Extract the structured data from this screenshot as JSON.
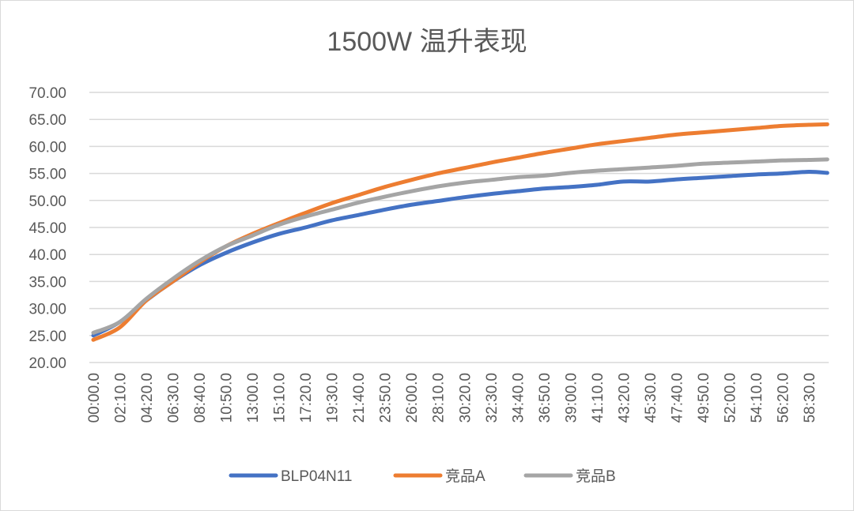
{
  "chart_data": {
    "type": "line",
    "title": "1500W 温升表现",
    "xlabel": "",
    "ylabel": "",
    "ylim": [
      20,
      70
    ],
    "y_ticks": [
      "20.00",
      "25.00",
      "30.00",
      "35.00",
      "40.00",
      "45.00",
      "50.00",
      "55.00",
      "60.00",
      "65.00",
      "70.00"
    ],
    "x_tick_labels": [
      "00:00.0",
      "02:10.0",
      "04:20.0",
      "06:30.0",
      "08:40.0",
      "10:50.0",
      "13:00.0",
      "15:10.0",
      "17:20.0",
      "19:30.0",
      "21:40.0",
      "23:50.0",
      "26:00.0",
      "28:10.0",
      "30:20.0",
      "32:30.0",
      "34:40.0",
      "36:50.0",
      "39:00.0",
      "41:10.0",
      "43:20.0",
      "45:30.0",
      "47:40.0",
      "49:50.0",
      "52:00.0",
      "54:10.0",
      "56:20.0",
      "58:30.0"
    ],
    "x": [
      "00:00.0",
      "02:10.0",
      "04:20.0",
      "06:30.0",
      "08:40.0",
      "10:50.0",
      "13:00.0",
      "15:10.0",
      "17:20.0",
      "19:30.0",
      "21:40.0",
      "23:50.0",
      "26:00.0",
      "28:10.0",
      "30:20.0",
      "32:30.0",
      "34:40.0",
      "36:50.0",
      "39:00.0",
      "41:10.0",
      "43:20.0",
      "45:30.0",
      "47:40.0",
      "49:50.0",
      "52:00.0",
      "54:10.0",
      "56:20.0",
      "58:30.0",
      "60:00.0"
    ],
    "grid": true,
    "legend_position": "bottom",
    "series": [
      {
        "name": "BLP04N11",
        "color": "#4472c4",
        "values": [
          25,
          27.5,
          31.5,
          35,
          38,
          40.3,
          42.2,
          43.8,
          45,
          46.3,
          47.3,
          48.3,
          49.2,
          49.9,
          50.6,
          51.2,
          51.7,
          52.2,
          52.5,
          52.9,
          53.5,
          53.5,
          53.9,
          54.2,
          54.5,
          54.8,
          55,
          55.3,
          55.1
        ]
      },
      {
        "name": "竞品A",
        "color": "#ed7d31",
        "values": [
          24.2,
          26.5,
          31.5,
          35,
          38.5,
          41.5,
          43.8,
          45.8,
          47.7,
          49.5,
          51,
          52.5,
          53.8,
          55,
          56,
          57,
          57.9,
          58.8,
          59.6,
          60.4,
          61,
          61.6,
          62.2,
          62.6,
          63,
          63.4,
          63.8,
          64,
          64.1
        ]
      },
      {
        "name": "竞品B",
        "color": "#a5a5a5",
        "values": [
          25.5,
          27.5,
          31.8,
          35.5,
          38.8,
          41.5,
          43.5,
          45.5,
          47,
          48.3,
          49.6,
          50.7,
          51.7,
          52.6,
          53.3,
          53.8,
          54.3,
          54.6,
          55.1,
          55.5,
          55.8,
          56.1,
          56.4,
          56.8,
          57,
          57.2,
          57.4,
          57.5,
          57.6
        ]
      }
    ]
  }
}
